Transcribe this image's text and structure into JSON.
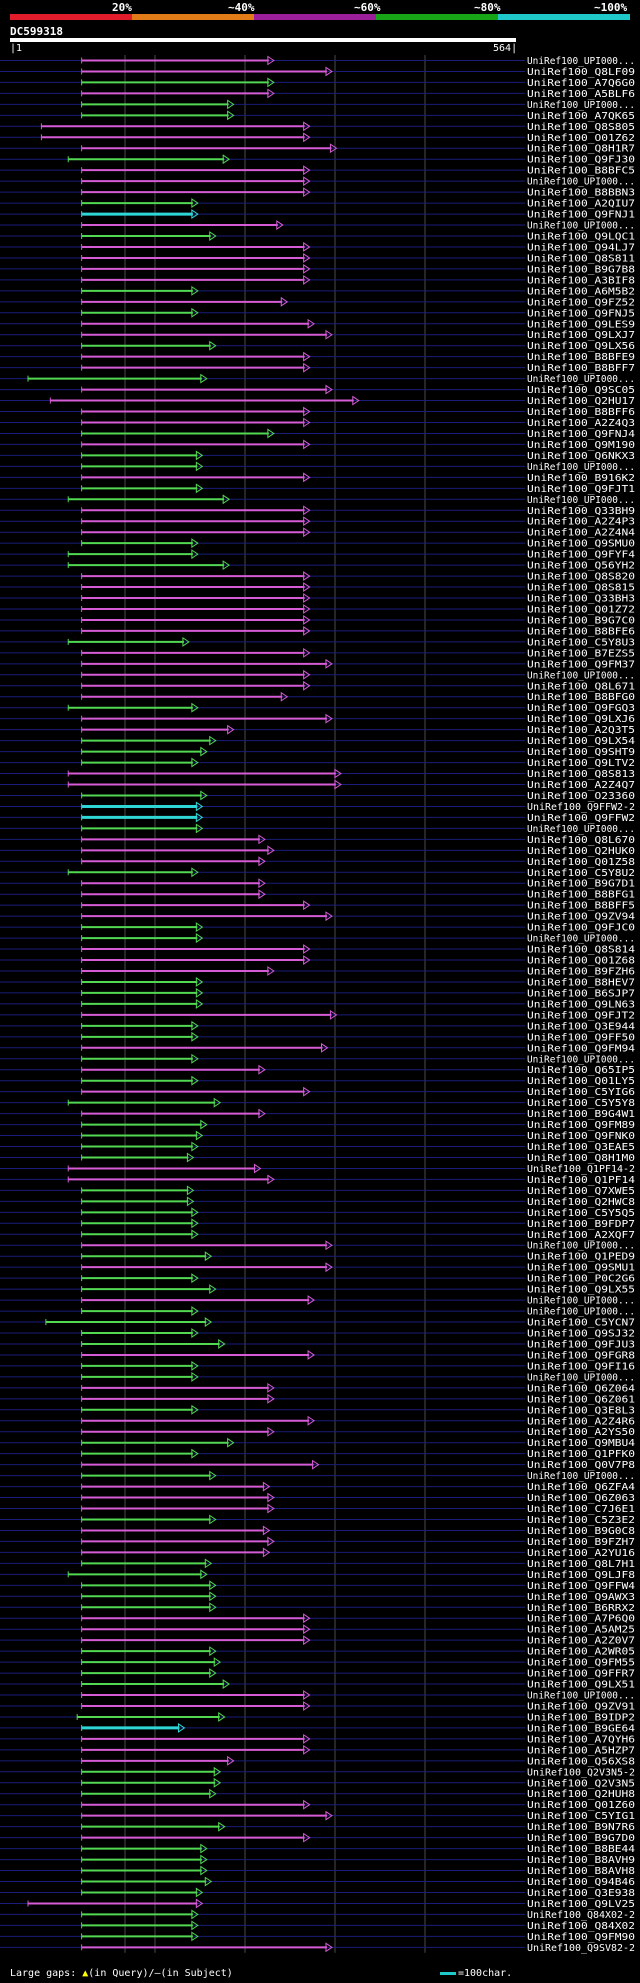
{
  "legend": {
    "labels": [
      "20%",
      "~40%",
      "~60%",
      "~80%",
      "~100%"
    ],
    "colors": [
      "#e21c2a",
      "#e37b18",
      "#9b1f9b",
      "#17a517",
      "#1fc9c9"
    ]
  },
  "query": {
    "title": "DC599318",
    "start": "1",
    "end": "564"
  },
  "footer": {
    "gaps_label": "Large gaps: ",
    "gaps_query": "(in Query)/",
    "gaps_subject": "(in Subject)",
    "scale_label": "=100char."
  },
  "hits": [
    {
      "id": "UniRef100_UPI000...",
      "s": 0.12,
      "e": 0.55,
      "c": "m"
    },
    {
      "id": "UniRef100_Q8LF09",
      "s": 0.12,
      "e": 0.68,
      "c": "m"
    },
    {
      "id": "UniRef100_A7Q6G0",
      "s": 0.12,
      "e": 0.55,
      "c": "g"
    },
    {
      "id": "UniRef100_A5BLF6",
      "s": 0.12,
      "e": 0.55,
      "c": "m"
    },
    {
      "id": "UniRef100_UPI000...",
      "s": 0.12,
      "e": 0.46,
      "c": "g"
    },
    {
      "id": "UniRef100_A7QK65",
      "s": 0.12,
      "e": 0.46,
      "c": "g"
    },
    {
      "id": "UniRef100_Q8S805",
      "s": 0.03,
      "e": 0.63,
      "c": "m"
    },
    {
      "id": "UniRef100_O01Z62",
      "s": 0.03,
      "e": 0.63,
      "c": "m"
    },
    {
      "id": "UniRef100_Q8H1R7",
      "s": 0.12,
      "e": 0.69,
      "c": "m"
    },
    {
      "id": "UniRef100_Q9FJ30",
      "s": 0.09,
      "e": 0.45,
      "c": "g"
    },
    {
      "id": "UniRef100_B8BFC5",
      "s": 0.12,
      "e": 0.63,
      "c": "m"
    },
    {
      "id": "UniRef100_UPI000...",
      "s": 0.12,
      "e": 0.63,
      "c": "m"
    },
    {
      "id": "UniRef100_B8BBN3",
      "s": 0.12,
      "e": 0.63,
      "c": "m"
    },
    {
      "id": "UniRef100_A2QIU7",
      "s": 0.12,
      "e": 0.38,
      "c": "g"
    },
    {
      "id": "UniRef100_Q9FNJ1",
      "s": 0.12,
      "e": 0.38,
      "c": "c"
    },
    {
      "id": "UniRef100_UPI000...",
      "s": 0.12,
      "e": 0.57,
      "c": "m"
    },
    {
      "id": "UniRef100_Q9LQC1",
      "s": 0.12,
      "e": 0.42,
      "c": "g"
    },
    {
      "id": "UniRef100_Q94LJ7",
      "s": 0.12,
      "e": 0.63,
      "c": "m"
    },
    {
      "id": "UniRef100_Q8S811",
      "s": 0.12,
      "e": 0.63,
      "c": "m"
    },
    {
      "id": "UniRef100_B9G7B8",
      "s": 0.12,
      "e": 0.63,
      "c": "m"
    },
    {
      "id": "UniRef100_A3BIF8",
      "s": 0.12,
      "e": 0.63,
      "c": "m"
    },
    {
      "id": "UniRef100_A6M5B2",
      "s": 0.12,
      "e": 0.38,
      "c": "g"
    },
    {
      "id": "UniRef100_Q9FZ52",
      "s": 0.12,
      "e": 0.58,
      "c": "m"
    },
    {
      "id": "UniRef100_Q9FNJ5",
      "s": 0.12,
      "e": 0.38,
      "c": "g"
    },
    {
      "id": "UniRef100_Q9LES9",
      "s": 0.12,
      "e": 0.64,
      "c": "m"
    },
    {
      "id": "UniRef100_Q9LXJ7",
      "s": 0.12,
      "e": 0.68,
      "c": "m"
    },
    {
      "id": "UniRef100_Q9LX56",
      "s": 0.12,
      "e": 0.42,
      "c": "g"
    },
    {
      "id": "UniRef100_B8BFE9",
      "s": 0.12,
      "e": 0.63,
      "c": "m"
    },
    {
      "id": "UniRef100_B8BFF7",
      "s": 0.12,
      "e": 0.63,
      "c": "m"
    },
    {
      "id": "UniRef100_UPI000...",
      "s": 0.0,
      "e": 0.4,
      "c": "g"
    },
    {
      "id": "UniRef100_Q9SC05",
      "s": 0.12,
      "e": 0.68,
      "c": "m"
    },
    {
      "id": "UniRef100_Q2HU17",
      "s": 0.05,
      "e": 0.74,
      "c": "m"
    },
    {
      "id": "UniRef100_B8BFF6",
      "s": 0.12,
      "e": 0.63,
      "c": "m"
    },
    {
      "id": "UniRef100_A2Z4Q3",
      "s": 0.12,
      "e": 0.63,
      "c": "m"
    },
    {
      "id": "UniRef100_Q9FNJ4",
      "s": 0.12,
      "e": 0.55,
      "c": "g"
    },
    {
      "id": "UniRef100_Q9M190",
      "s": 0.12,
      "e": 0.63,
      "c": "m"
    },
    {
      "id": "UniRef100_Q6NKX3",
      "s": 0.12,
      "e": 0.39,
      "c": "g"
    },
    {
      "id": "UniRef100_UPI000...",
      "s": 0.12,
      "e": 0.39,
      "c": "g"
    },
    {
      "id": "UniRef100_B916K2",
      "s": 0.12,
      "e": 0.63,
      "c": "m"
    },
    {
      "id": "UniRef100_Q9FJT1",
      "s": 0.12,
      "e": 0.39,
      "c": "g"
    },
    {
      "id": "UniRef100_UPI000...",
      "s": 0.09,
      "e": 0.45,
      "c": "g"
    },
    {
      "id": "UniRef100_Q33BH9",
      "s": 0.12,
      "e": 0.63,
      "c": "m"
    },
    {
      "id": "UniRef100_A2Z4P3",
      "s": 0.12,
      "e": 0.63,
      "c": "m"
    },
    {
      "id": "UniRef100_A2Z4N4",
      "s": 0.12,
      "e": 0.63,
      "c": "m"
    },
    {
      "id": "UniRef100_Q9SMU0",
      "s": 0.12,
      "e": 0.38,
      "c": "g"
    },
    {
      "id": "UniRef100_Q9FYF4",
      "s": 0.09,
      "e": 0.38,
      "c": "g"
    },
    {
      "id": "UniRef100_Q56YH2",
      "s": 0.09,
      "e": 0.45,
      "c": "g"
    },
    {
      "id": "UniRef100_Q8S820",
      "s": 0.12,
      "e": 0.63,
      "c": "m"
    },
    {
      "id": "UniRef100_Q8S815",
      "s": 0.12,
      "e": 0.63,
      "c": "m"
    },
    {
      "id": "UniRef100_Q33BH3",
      "s": 0.12,
      "e": 0.63,
      "c": "m"
    },
    {
      "id": "UniRef100_Q01Z72",
      "s": 0.12,
      "e": 0.63,
      "c": "m"
    },
    {
      "id": "UniRef100_B9G7C0",
      "s": 0.12,
      "e": 0.63,
      "c": "m"
    },
    {
      "id": "UniRef100_B8BFE6",
      "s": 0.12,
      "e": 0.63,
      "c": "m"
    },
    {
      "id": "UniRef100_C5Y8U3",
      "s": 0.09,
      "e": 0.36,
      "c": "g"
    },
    {
      "id": "UniRef100_B7EZS5",
      "s": 0.12,
      "e": 0.63,
      "c": "m"
    },
    {
      "id": "UniRef100_Q9FM37",
      "s": 0.12,
      "e": 0.68,
      "c": "m"
    },
    {
      "id": "UniRef100_UPI000...",
      "s": 0.12,
      "e": 0.63,
      "c": "m"
    },
    {
      "id": "UniRef100_Q8L671",
      "s": 0.12,
      "e": 0.63,
      "c": "m"
    },
    {
      "id": "UniRef100_B8BFG0",
      "s": 0.12,
      "e": 0.58,
      "c": "m"
    },
    {
      "id": "UniRef100_Q9FGQ3",
      "s": 0.09,
      "e": 0.38,
      "c": "g"
    },
    {
      "id": "UniRef100_Q9LXJ6",
      "s": 0.12,
      "e": 0.68,
      "c": "m"
    },
    {
      "id": "UniRef100_A2Q3T5",
      "s": 0.12,
      "e": 0.46,
      "c": "m"
    },
    {
      "id": "UniRef100_Q9LX54",
      "s": 0.12,
      "e": 0.42,
      "c": "g"
    },
    {
      "id": "UniRef100_Q9SHT9",
      "s": 0.12,
      "e": 0.4,
      "c": "g"
    },
    {
      "id": "UniRef100_Q9LTV2",
      "s": 0.12,
      "e": 0.38,
      "c": "g"
    },
    {
      "id": "UniRef100_Q8S813",
      "s": 0.09,
      "e": 0.7,
      "c": "m"
    },
    {
      "id": "UniRef100_A2Z4Q7",
      "s": 0.09,
      "e": 0.7,
      "c": "m"
    },
    {
      "id": "UniRef100_O23360",
      "s": 0.12,
      "e": 0.4,
      "c": "g"
    },
    {
      "id": "UniRef100_Q9FFW2-2",
      "s": 0.12,
      "e": 0.39,
      "c": "c"
    },
    {
      "id": "UniRef100_Q9FFW2",
      "s": 0.12,
      "e": 0.39,
      "c": "c"
    },
    {
      "id": "UniRef100_UPI000...",
      "s": 0.12,
      "e": 0.39,
      "c": "g"
    },
    {
      "id": "UniRef100_Q8L670",
      "s": 0.12,
      "e": 0.53,
      "c": "m"
    },
    {
      "id": "UniRef100_Q2HUK0",
      "s": 0.12,
      "e": 0.55,
      "c": "m"
    },
    {
      "id": "UniRef100_Q01Z58",
      "s": 0.12,
      "e": 0.53,
      "c": "m"
    },
    {
      "id": "UniRef100_C5Y8U2",
      "s": 0.09,
      "e": 0.38,
      "c": "g"
    },
    {
      "id": "UniRef100_B9G7D1",
      "s": 0.12,
      "e": 0.53,
      "c": "m"
    },
    {
      "id": "UniRef100_B8BFG1",
      "s": 0.12,
      "e": 0.53,
      "c": "m"
    },
    {
      "id": "UniRef100_B8BFF5",
      "s": 0.12,
      "e": 0.63,
      "c": "m"
    },
    {
      "id": "UniRef100_Q9ZV94",
      "s": 0.12,
      "e": 0.68,
      "c": "m"
    },
    {
      "id": "UniRef100_Q9FJC0",
      "s": 0.12,
      "e": 0.39,
      "c": "g"
    },
    {
      "id": "UniRef100_UPI000...",
      "s": 0.12,
      "e": 0.39,
      "c": "g"
    },
    {
      "id": "UniRef100_Q8S814",
      "s": 0.12,
      "e": 0.63,
      "c": "m"
    },
    {
      "id": "UniRef100_Q01Z68",
      "s": 0.12,
      "e": 0.63,
      "c": "m"
    },
    {
      "id": "UniRef100_B9FZH6",
      "s": 0.12,
      "e": 0.55,
      "c": "m"
    },
    {
      "id": "UniRef100_B8HEV7",
      "s": 0.12,
      "e": 0.39,
      "c": "g"
    },
    {
      "id": "UniRef100_B6SJP7",
      "s": 0.12,
      "e": 0.39,
      "c": "g"
    },
    {
      "id": "UniRef100_Q9LN63",
      "s": 0.12,
      "e": 0.39,
      "c": "g"
    },
    {
      "id": "UniRef100_Q9FJT2",
      "s": 0.12,
      "e": 0.69,
      "c": "m"
    },
    {
      "id": "UniRef100_Q3E944",
      "s": 0.12,
      "e": 0.38,
      "c": "g"
    },
    {
      "id": "UniRef100_Q9FF50",
      "s": 0.12,
      "e": 0.38,
      "c": "g"
    },
    {
      "id": "UniRef100_Q9FM94",
      "s": 0.12,
      "e": 0.67,
      "c": "m"
    },
    {
      "id": "UniRef100_UPI000...",
      "s": 0.12,
      "e": 0.38,
      "c": "g"
    },
    {
      "id": "UniRef100_Q65IP5",
      "s": 0.12,
      "e": 0.53,
      "c": "m"
    },
    {
      "id": "UniRef100_Q01LY5",
      "s": 0.12,
      "e": 0.38,
      "c": "g"
    },
    {
      "id": "UniRef100_C5YIG6",
      "s": 0.12,
      "e": 0.63,
      "c": "m"
    },
    {
      "id": "UniRef100_C5Y5Y8",
      "s": 0.09,
      "e": 0.43,
      "c": "g"
    },
    {
      "id": "UniRef100_B9G4W1",
      "s": 0.12,
      "e": 0.53,
      "c": "m"
    },
    {
      "id": "UniRef100_Q9FM89",
      "s": 0.12,
      "e": 0.4,
      "c": "g"
    },
    {
      "id": "UniRef100_Q9FNK0",
      "s": 0.12,
      "e": 0.39,
      "c": "g"
    },
    {
      "id": "UniRef100_Q3EAE5",
      "s": 0.12,
      "e": 0.38,
      "c": "g"
    },
    {
      "id": "UniRef100_Q8H1M0",
      "s": 0.12,
      "e": 0.37,
      "c": "g"
    },
    {
      "id": "UniRef100_Q1PF14-2",
      "s": 0.09,
      "e": 0.52,
      "c": "m"
    },
    {
      "id": "UniRef100_Q1PF14",
      "s": 0.09,
      "e": 0.55,
      "c": "m"
    },
    {
      "id": "UniRef100_Q7XWE5",
      "s": 0.12,
      "e": 0.37,
      "c": "g"
    },
    {
      "id": "UniRef100_Q2HWC8",
      "s": 0.12,
      "e": 0.37,
      "c": "g"
    },
    {
      "id": "UniRef100_C5Y5Q5",
      "s": 0.12,
      "e": 0.38,
      "c": "g"
    },
    {
      "id": "UniRef100_B9FDP7",
      "s": 0.12,
      "e": 0.38,
      "c": "g"
    },
    {
      "id": "UniRef100_A2XQF7",
      "s": 0.12,
      "e": 0.38,
      "c": "g"
    },
    {
      "id": "UniRef100_UPI000...",
      "s": 0.12,
      "e": 0.68,
      "c": "m"
    },
    {
      "id": "UniRef100_Q1PED9",
      "s": 0.12,
      "e": 0.41,
      "c": "g"
    },
    {
      "id": "UniRef100_Q9SMU1",
      "s": 0.12,
      "e": 0.68,
      "c": "m"
    },
    {
      "id": "UniRef100_P0C2G6",
      "s": 0.12,
      "e": 0.38,
      "c": "g"
    },
    {
      "id": "UniRef100_Q9LX55",
      "s": 0.12,
      "e": 0.42,
      "c": "g"
    },
    {
      "id": "UniRef100_UPI000...",
      "s": 0.12,
      "e": 0.64,
      "c": "m"
    },
    {
      "id": "UniRef100_UPI000...",
      "s": 0.12,
      "e": 0.38,
      "c": "g"
    },
    {
      "id": "UniRef100_C5YCN7",
      "s": 0.04,
      "e": 0.41,
      "c": "g"
    },
    {
      "id": "UniRef100_Q9SJ32",
      "s": 0.12,
      "e": 0.38,
      "c": "g"
    },
    {
      "id": "UniRef100_Q9FJU3",
      "s": 0.12,
      "e": 0.44,
      "c": "g"
    },
    {
      "id": "UniRef100_Q9FGR8",
      "s": 0.12,
      "e": 0.64,
      "c": "m"
    },
    {
      "id": "UniRef100_Q9FI16",
      "s": 0.12,
      "e": 0.38,
      "c": "g"
    },
    {
      "id": "UniRef100_UPI000...",
      "s": 0.12,
      "e": 0.38,
      "c": "g"
    },
    {
      "id": "UniRef100_Q6Z064",
      "s": 0.12,
      "e": 0.55,
      "c": "m"
    },
    {
      "id": "UniRef100_Q6Z061",
      "s": 0.12,
      "e": 0.55,
      "c": "m"
    },
    {
      "id": "UniRef100_Q3E8L3",
      "s": 0.12,
      "e": 0.38,
      "c": "g"
    },
    {
      "id": "UniRef100_A2Z4R6",
      "s": 0.12,
      "e": 0.64,
      "c": "m"
    },
    {
      "id": "UniRef100_A2YS50",
      "s": 0.12,
      "e": 0.55,
      "c": "m"
    },
    {
      "id": "UniRef100_Q9MBU4",
      "s": 0.12,
      "e": 0.46,
      "c": "g"
    },
    {
      "id": "UniRef100_Q1PFK0",
      "s": 0.12,
      "e": 0.38,
      "c": "g"
    },
    {
      "id": "UniRef100_Q0V7P8",
      "s": 0.12,
      "e": 0.65,
      "c": "m"
    },
    {
      "id": "UniRef100_UPI000...",
      "s": 0.12,
      "e": 0.42,
      "c": "g"
    },
    {
      "id": "UniRef100_Q6ZFA4",
      "s": 0.12,
      "e": 0.54,
      "c": "m"
    },
    {
      "id": "UniRef100_Q6Z063",
      "s": 0.12,
      "e": 0.55,
      "c": "m"
    },
    {
      "id": "UniRef100_C7J6E1",
      "s": 0.12,
      "e": 0.55,
      "c": "m"
    },
    {
      "id": "UniRef100_C5Z3E2",
      "s": 0.12,
      "e": 0.42,
      "c": "g"
    },
    {
      "id": "UniRef100_B9G0C8",
      "s": 0.12,
      "e": 0.54,
      "c": "m"
    },
    {
      "id": "UniRef100_B9FZH7",
      "s": 0.12,
      "e": 0.55,
      "c": "m"
    },
    {
      "id": "UniRef100_A2YU16",
      "s": 0.12,
      "e": 0.54,
      "c": "m"
    },
    {
      "id": "UniRef100_Q8L7H1",
      "s": 0.12,
      "e": 0.41,
      "c": "g"
    },
    {
      "id": "UniRef100_Q9LJF8",
      "s": 0.09,
      "e": 0.4,
      "c": "g"
    },
    {
      "id": "UniRef100_Q9FFW4",
      "s": 0.12,
      "e": 0.42,
      "c": "g"
    },
    {
      "id": "UniRef100_Q9AWX3",
      "s": 0.12,
      "e": 0.42,
      "c": "g"
    },
    {
      "id": "UniRef100_B6RRX2",
      "s": 0.12,
      "e": 0.42,
      "c": "g"
    },
    {
      "id": "UniRef100_A7P6Q0",
      "s": 0.12,
      "e": 0.63,
      "c": "m"
    },
    {
      "id": "UniRef100_A5AM25",
      "s": 0.12,
      "e": 0.63,
      "c": "m"
    },
    {
      "id": "UniRef100_A2Z0V7",
      "s": 0.12,
      "e": 0.63,
      "c": "m"
    },
    {
      "id": "UniRef100_A2WR05",
      "s": 0.12,
      "e": 0.42,
      "c": "g"
    },
    {
      "id": "UniRef100_Q9FM55",
      "s": 0.12,
      "e": 0.43,
      "c": "g"
    },
    {
      "id": "UniRef100_Q9FFR7",
      "s": 0.12,
      "e": 0.42,
      "c": "g"
    },
    {
      "id": "UniRef100_Q9LX51",
      "s": 0.12,
      "e": 0.45,
      "c": "g"
    },
    {
      "id": "UniRef100_UPI000...",
      "s": 0.12,
      "e": 0.63,
      "c": "m"
    },
    {
      "id": "UniRef100_Q9ZV91",
      "s": 0.12,
      "e": 0.63,
      "c": "m"
    },
    {
      "id": "UniRef100_B9IDP2",
      "s": 0.11,
      "e": 0.44,
      "c": "g"
    },
    {
      "id": "UniRef100_B9GE64",
      "s": 0.12,
      "e": 0.35,
      "c": "c"
    },
    {
      "id": "UniRef100_A7QYH6",
      "s": 0.12,
      "e": 0.63,
      "c": "m"
    },
    {
      "id": "UniRef100_A5HZP7",
      "s": 0.12,
      "e": 0.63,
      "c": "m"
    },
    {
      "id": "UniRef100_Q56XS8",
      "s": 0.12,
      "e": 0.46,
      "c": "m"
    },
    {
      "id": "UniRef100_Q2V3N5-2",
      "s": 0.12,
      "e": 0.43,
      "c": "g"
    },
    {
      "id": "UniRef100_Q2V3N5",
      "s": 0.12,
      "e": 0.43,
      "c": "g"
    },
    {
      "id": "UniRef100_Q2HUH8",
      "s": 0.12,
      "e": 0.42,
      "c": "g"
    },
    {
      "id": "UniRef100_Q01Z60",
      "s": 0.12,
      "e": 0.63,
      "c": "m"
    },
    {
      "id": "UniRef100_C5YIG1",
      "s": 0.12,
      "e": 0.68,
      "c": "m"
    },
    {
      "id": "UniRef100_B9N7R6",
      "s": 0.12,
      "e": 0.44,
      "c": "g"
    },
    {
      "id": "UniRef100_B9G7D0",
      "s": 0.12,
      "e": 0.63,
      "c": "m"
    },
    {
      "id": "UniRef100_B8BE44",
      "s": 0.12,
      "e": 0.4,
      "c": "g"
    },
    {
      "id": "UniRef100_B8AVH9",
      "s": 0.12,
      "e": 0.4,
      "c": "g"
    },
    {
      "id": "UniRef100_B8AVH8",
      "s": 0.12,
      "e": 0.4,
      "c": "g"
    },
    {
      "id": "UniRef100_Q94B46",
      "s": 0.12,
      "e": 0.41,
      "c": "g"
    },
    {
      "id": "UniRef100_Q3E938",
      "s": 0.12,
      "e": 0.39,
      "c": "g"
    },
    {
      "id": "UniRef100_Q9LV25",
      "s": 0.0,
      "e": 0.39,
      "c": "m"
    },
    {
      "id": "UniRef100_Q84X02-2",
      "s": 0.12,
      "e": 0.38,
      "c": "g"
    },
    {
      "id": "UniRef100_Q84X02",
      "s": 0.12,
      "e": 0.38,
      "c": "g"
    },
    {
      "id": "UniRef100_Q9FM90",
      "s": 0.12,
      "e": 0.38,
      "c": "g"
    },
    {
      "id": "UniRef100_Q9SV82-2",
      "s": 0.12,
      "e": 0.68,
      "c": "m"
    }
  ]
}
